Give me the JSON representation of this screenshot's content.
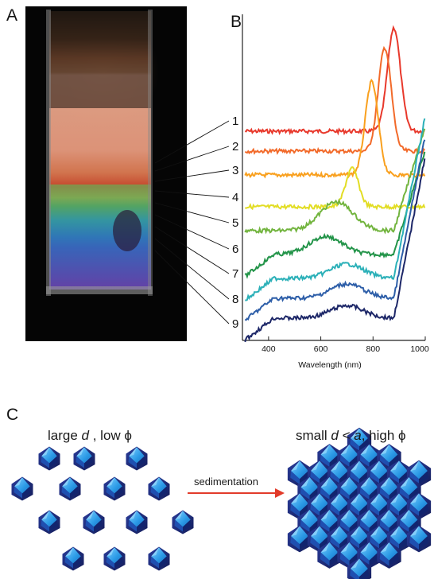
{
  "panels": {
    "a": "A",
    "b": "B",
    "c": "C"
  },
  "chart_data": {
    "type": "line",
    "xlabel": "Wavelength (nm)",
    "ylabel": "",
    "xlim": [
      300,
      1000
    ],
    "xticks": [
      400,
      600,
      800,
      1000
    ],
    "yticks": "none",
    "grid": false,
    "series": [
      {
        "name": "1",
        "color": "#e8392c",
        "peaks": [
          {
            "x": 880,
            "amp": 1.0
          }
        ]
      },
      {
        "name": "2",
        "color": "#f26a2a",
        "peaks": [
          {
            "x": 845,
            "amp": 1.0
          }
        ]
      },
      {
        "name": "3",
        "color": "#f9a01e",
        "peaks": [
          {
            "x": 795,
            "amp": 0.9
          }
        ]
      },
      {
        "name": "4",
        "color": "#e2dd24",
        "peaks": [
          {
            "x": 720,
            "amp": 0.8
          }
        ]
      },
      {
        "name": "5",
        "color": "#72b43e",
        "peaks": [
          {
            "x": 660,
            "amp": 0.6
          }
        ]
      },
      {
        "name": "6",
        "color": "#239449",
        "peaks": [
          {
            "x": 620,
            "amp": 0.5
          }
        ]
      },
      {
        "name": "7",
        "color": "#2bb0b8",
        "peaks": [
          {
            "x": 700,
            "amp": 0.4
          }
        ]
      },
      {
        "name": "8",
        "color": "#2d5ea8",
        "peaks": [
          {
            "x": 700,
            "amp": 0.4
          }
        ]
      },
      {
        "name": "9",
        "color": "#1d2768",
        "peaks": [
          {
            "x": 700,
            "amp": 0.35
          }
        ]
      }
    ]
  },
  "photo": {
    "description_tags": [
      "cuvette",
      "sediment",
      "iridescent"
    ]
  },
  "schematic": {
    "left_caption": {
      "pre": "large ",
      "d": "d",
      "mid": " , low ",
      "phi": "ϕ"
    },
    "right_caption": {
      "pre": "small ",
      "d": "d",
      "lt": " < ",
      "a": "a",
      "mid": ", high ",
      "phi": "ϕ"
    },
    "arrow_label": "sedimentation",
    "colors": {
      "particle_light": "#3aa6e8",
      "particle_dark": "#1b2d8a",
      "arrow": "#e23b2a"
    }
  }
}
